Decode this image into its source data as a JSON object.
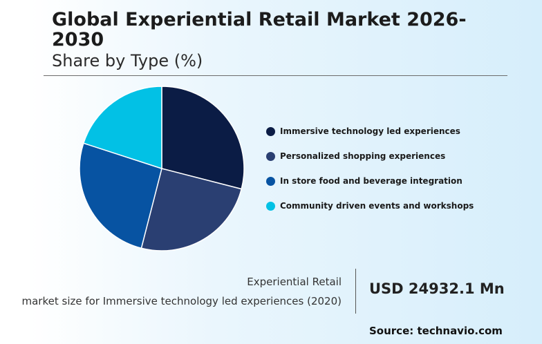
{
  "header": {
    "title": "Global Experiential Retail Market 2026-2030",
    "subtitle": "Share by Type (%)"
  },
  "chart_data": {
    "type": "pie",
    "categories": [
      "Immersive technology led experiences",
      "Personalized shopping experiences",
      "In store food and beverage integration",
      "Community driven events and workshops"
    ],
    "values": [
      29,
      25,
      26,
      20
    ],
    "colors": [
      "#0b1c45",
      "#2a3f72",
      "#0753a2",
      "#02c1e5"
    ],
    "legend_position": "right"
  },
  "metric": {
    "label": "Experiential Retail",
    "description": "market size for Immersive technology led experiences (2020)",
    "value": "USD 24932.1 Mn"
  },
  "footer": {
    "source": "Source: technavio.com"
  }
}
